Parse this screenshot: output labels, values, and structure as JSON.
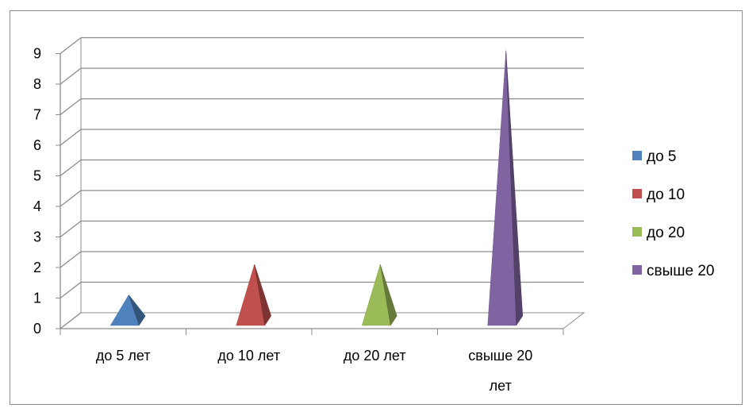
{
  "chart_data": {
    "type": "bar",
    "style": "3d-pyramid",
    "categories": [
      "до 5 лет",
      "до 10 лет",
      "до 20 лет",
      "свыше 20 лет"
    ],
    "series": [
      {
        "name": "до 5",
        "color": "#4f81bd",
        "values": [
          1,
          null,
          null,
          null
        ]
      },
      {
        "name": "до 10",
        "color": "#c0504d",
        "values": [
          null,
          2,
          null,
          null
        ]
      },
      {
        "name": "до 20",
        "color": "#9bbb59",
        "values": [
          null,
          null,
          2,
          null
        ]
      },
      {
        "name": "свыше 20",
        "color": "#8064a2",
        "values": [
          null,
          null,
          null,
          9
        ]
      }
    ],
    "title": "",
    "xlabel": "",
    "ylabel": "",
    "ylim": [
      0,
      9
    ],
    "yticks": [
      "0",
      "1",
      "2",
      "3",
      "4",
      "5",
      "6",
      "7",
      "8",
      "9"
    ],
    "grid": true,
    "legend_position": "right"
  }
}
